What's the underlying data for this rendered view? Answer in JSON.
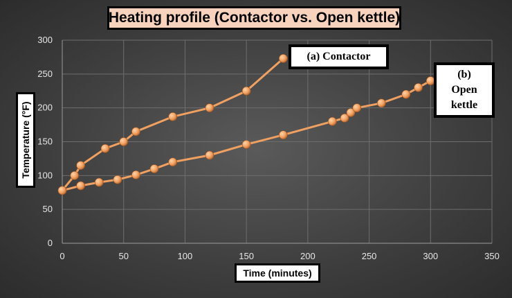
{
  "chart_data": {
    "type": "line",
    "title": "Heating profile (Contactor vs. Open kettle)",
    "xlabel": "Time  (minutes)",
    "ylabel": "Temperature (°F)",
    "xlim": [
      0,
      350
    ],
    "ylim": [
      0,
      300
    ],
    "x_ticks": [
      0,
      50,
      100,
      150,
      200,
      250,
      300,
      350
    ],
    "y_ticks": [
      0,
      50,
      100,
      150,
      200,
      250,
      300
    ],
    "grid": true,
    "series_color": "#f0a060",
    "series": [
      {
        "label_lines": [
          "(a) Contactor"
        ],
        "points": [
          [
            0,
            78
          ],
          [
            10,
            100
          ],
          [
            15,
            115
          ],
          [
            35,
            140
          ],
          [
            50,
            150
          ],
          [
            60,
            165
          ],
          [
            90,
            187
          ],
          [
            120,
            200
          ],
          [
            150,
            225
          ],
          [
            180,
            273
          ]
        ]
      },
      {
        "label_lines": [
          "(b)",
          "Open",
          "kettle"
        ],
        "points": [
          [
            0,
            78
          ],
          [
            15,
            85
          ],
          [
            30,
            90
          ],
          [
            45,
            94
          ],
          [
            60,
            101
          ],
          [
            75,
            110
          ],
          [
            90,
            120
          ],
          [
            120,
            130
          ],
          [
            150,
            146
          ],
          [
            180,
            160
          ],
          [
            220,
            180
          ],
          [
            230,
            185
          ],
          [
            235,
            193
          ],
          [
            240,
            200
          ],
          [
            260,
            207
          ],
          [
            280,
            220
          ],
          [
            290,
            230
          ],
          [
            300,
            240
          ]
        ]
      }
    ]
  }
}
